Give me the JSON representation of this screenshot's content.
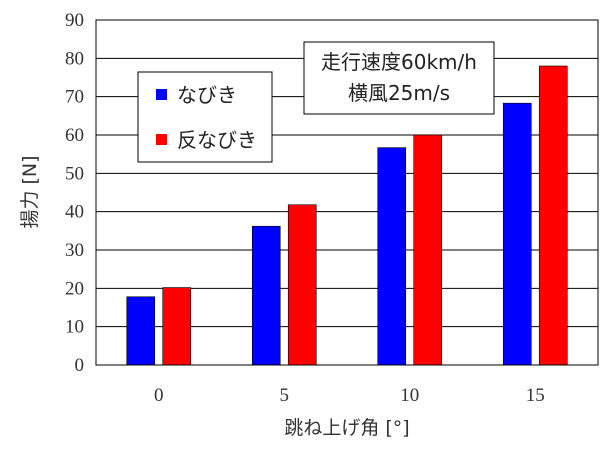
{
  "chart_data": {
    "type": "bar",
    "categories": [
      "0",
      "5",
      "10",
      "15"
    ],
    "series": [
      {
        "name": "なびき",
        "color": "#0000ff",
        "values": [
          17.8,
          36.2,
          56.7,
          68.3
        ]
      },
      {
        "name": "反なびき",
        "color": "#ff0000",
        "values": [
          20.2,
          41.8,
          60.0,
          78.0
        ]
      }
    ],
    "xlabel": "跳ね上げ角 [°]",
    "ylabel": "揚力 [N]",
    "ylim": [
      0,
      90
    ],
    "yticks": [
      "0",
      "10",
      "20",
      "30",
      "40",
      "50",
      "60",
      "70",
      "80",
      "90"
    ],
    "grid": true,
    "legend_position": "top-left",
    "annotation": {
      "lines": [
        "走行速度60km/h",
        "横風25m/s"
      ],
      "position": "top-center"
    }
  }
}
